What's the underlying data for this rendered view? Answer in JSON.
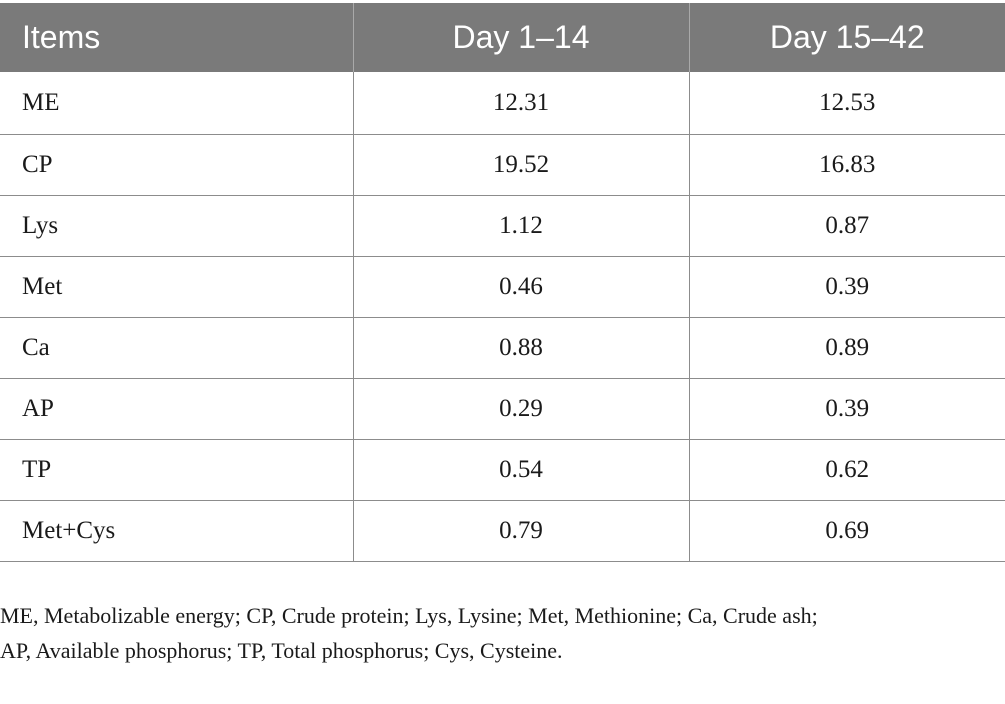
{
  "table": {
    "headers": [
      "Items",
      "Day 1–14",
      "Day 15–42"
    ],
    "rows": [
      [
        "ME",
        "12.31",
        "12.53"
      ],
      [
        "CP",
        "19.52",
        "16.83"
      ],
      [
        "Lys",
        "1.12",
        "0.87"
      ],
      [
        "Met",
        "0.46",
        "0.39"
      ],
      [
        "Ca",
        "0.88",
        "0.89"
      ],
      [
        "AP",
        "0.29",
        "0.39"
      ],
      [
        "TP",
        "0.54",
        "0.62"
      ],
      [
        "Met+Cys",
        "0.79",
        "0.69"
      ]
    ]
  },
  "footnote": {
    "line1": "ME, Metabolizable energy; CP, Crude protein; Lys, Lysine; Met, Methionine; Ca, Crude ash;",
    "line2": "AP, Available phosphorus; TP, Total phosphorus; Cys, Cysteine."
  }
}
